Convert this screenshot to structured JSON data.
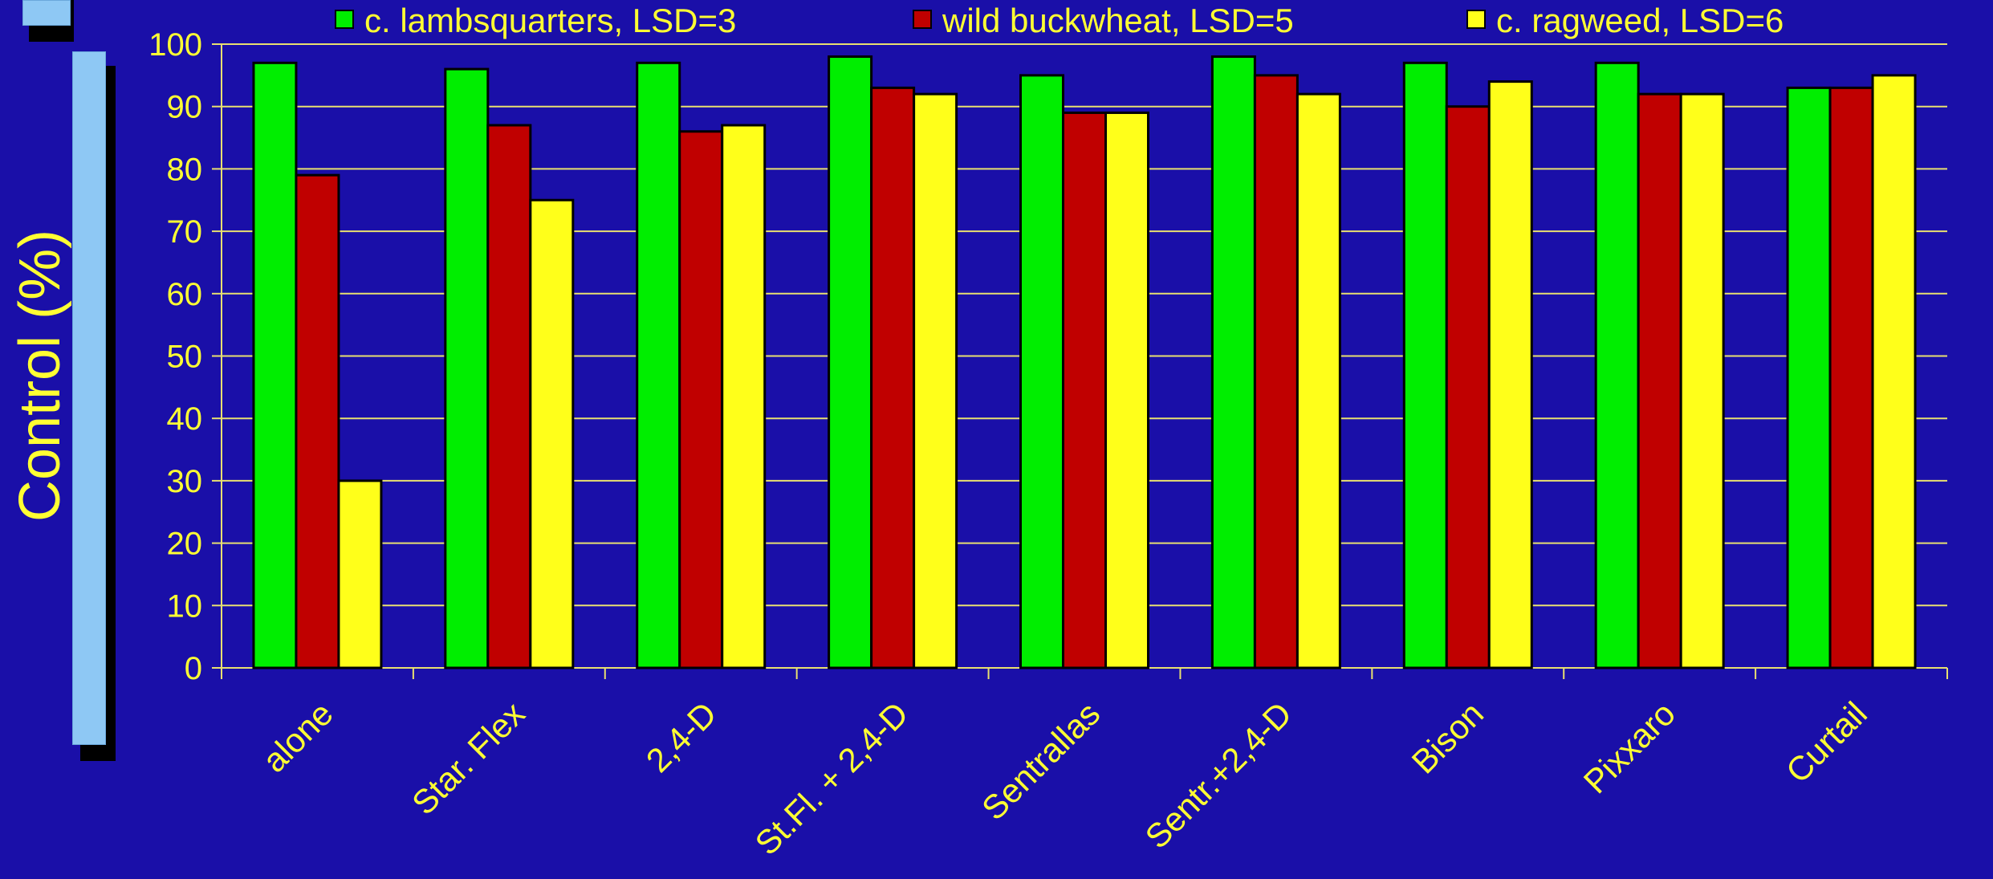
{
  "chart_data": {
    "type": "bar",
    "ylabel": "Control (%)",
    "ylim": [
      0,
      100
    ],
    "yticks": [
      0,
      10,
      20,
      30,
      40,
      50,
      60,
      70,
      80,
      90,
      100
    ],
    "grid": true,
    "legend_position": "top",
    "categories": [
      "alone",
      "Star. Flex",
      "2,4-D",
      "St.Fl. + 2,4-D",
      "Sentrallas",
      "Sentr.+2,4-D",
      "Bison",
      "Pixxaro",
      "Curtail"
    ],
    "series": [
      {
        "name": "c. lambsquarters, LSD=3",
        "color": "#00ee00",
        "values": [
          97,
          96,
          97,
          98,
          95,
          98,
          97,
          97,
          93
        ]
      },
      {
        "name": "wild buckwheat, LSD=5",
        "color": "#c00000",
        "values": [
          79,
          87,
          86,
          93,
          89,
          95,
          90,
          92,
          93
        ]
      },
      {
        "name": "c. ragweed, LSD=6",
        "color": "#ffff1a",
        "values": [
          30,
          75,
          87,
          92,
          89,
          92,
          94,
          92,
          95
        ]
      }
    ]
  },
  "colors": {
    "background": "#1a0fa8",
    "text": "#ffff33",
    "gridline": "#e8e070",
    "decor_bar": "#8ec8f4"
  }
}
